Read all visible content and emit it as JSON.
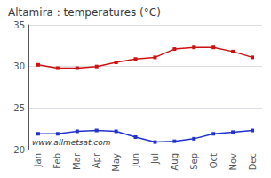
{
  "chart_data": {
    "type": "line",
    "title": "Altamira : temperatures (°C)",
    "categories": [
      "Jan",
      "Feb",
      "Mar",
      "Apr",
      "May",
      "Jun",
      "Jul",
      "Aug",
      "Sep",
      "Oct",
      "Nov",
      "Dec"
    ],
    "series": [
      {
        "color": "#cc1111",
        "values": [
          30.2,
          29.8,
          29.8,
          30.0,
          30.5,
          30.9,
          31.1,
          32.1,
          32.3,
          32.3,
          31.8,
          31.1
        ],
        "marker": "square",
        "line_style": "solid"
      },
      {
        "color": "#2233cc",
        "values": [
          21.9,
          21.9,
          22.2,
          22.3,
          22.2,
          21.5,
          20.9,
          21.0,
          21.3,
          21.9,
          22.1,
          22.3
        ],
        "marker": "square",
        "line_style": "solid"
      }
    ],
    "ylim": [
      20,
      35
    ],
    "yticks": [
      20,
      25,
      30,
      35
    ],
    "grid": true,
    "annotations": [
      "www.allmetsat.com"
    ]
  }
}
